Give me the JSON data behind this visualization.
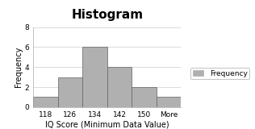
{
  "title": "Histogram",
  "xlabel": "IQ Score (Minimum Data Value)",
  "ylabel": "Frequency",
  "categories": [
    "118",
    "126",
    "134",
    "142",
    "150",
    "More"
  ],
  "values": [
    1,
    3,
    6,
    4,
    2,
    1
  ],
  "bar_color": "#b0b0b0",
  "bar_edge_color": "#606060",
  "ylim": [
    0,
    8
  ],
  "yticks": [
    0,
    2,
    4,
    6,
    8
  ],
  "legend_label": "Frequency",
  "background_color": "#ffffff",
  "title_fontsize": 11,
  "axis_label_fontsize": 7,
  "tick_fontsize": 6.5,
  "legend_fontsize": 6.5,
  "figsize": [
    3.16,
    1.6
  ],
  "dpi": 100
}
